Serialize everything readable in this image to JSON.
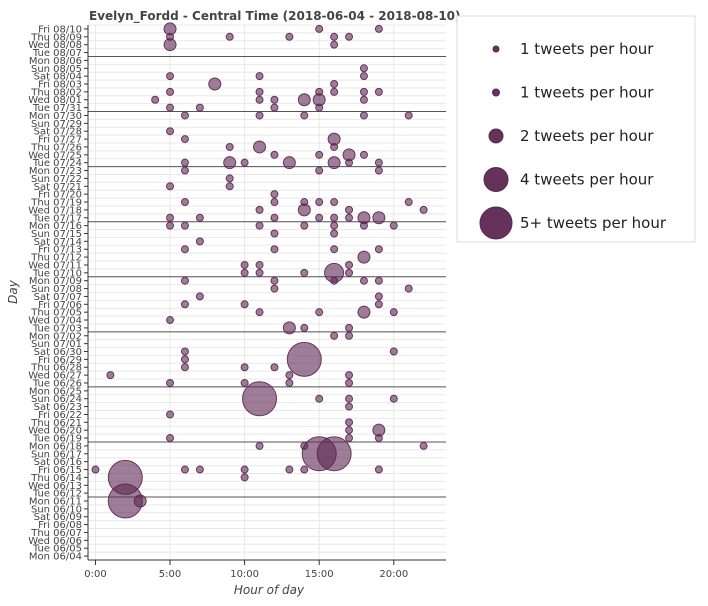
{
  "chart_data": {
    "type": "scatter",
    "title": "Evelyn_Fordd - Central Time (2018-06-04 - 2018-08-10)",
    "xlabel": "Hour of day",
    "ylabel": "Day",
    "xlim": [
      -0.5,
      23.5
    ],
    "x_ticks": [
      0,
      5,
      10,
      15,
      20
    ],
    "x_tick_labels": [
      "0:00",
      "5:00",
      "10:00",
      "15:00",
      "20:00"
    ],
    "days": [
      "Mon 06/04",
      "Tue 06/05",
      "Wed 06/06",
      "Thu 06/07",
      "Fri 06/08",
      "Sat 06/09",
      "Sun 06/10",
      "Mon 06/11",
      "Tue 06/12",
      "Wed 06/13",
      "Thu 06/14",
      "Fri 06/15",
      "Sat 06/16",
      "Sun 06/17",
      "Mon 06/18",
      "Tue 06/19",
      "Wed 06/20",
      "Thu 06/21",
      "Fri 06/22",
      "Sat 06/23",
      "Sun 06/24",
      "Mon 06/25",
      "Tue 06/26",
      "Wed 06/27",
      "Thu 06/28",
      "Fri 06/29",
      "Sat 06/30",
      "Sun 07/01",
      "Mon 07/02",
      "Tue 07/03",
      "Wed 07/04",
      "Thu 07/05",
      "Fri 07/06",
      "Sat 07/07",
      "Sun 07/08",
      "Mon 07/09",
      "Tue 07/10",
      "Wed 07/11",
      "Thu 07/12",
      "Fri 07/13",
      "Sat 07/14",
      "Sun 07/15",
      "Mon 07/16",
      "Tue 07/17",
      "Wed 07/18",
      "Thu 07/19",
      "Fri 07/20",
      "Sat 07/21",
      "Sun 07/22",
      "Mon 07/23",
      "Tue 07/24",
      "Wed 07/25",
      "Thu 07/26",
      "Fri 07/27",
      "Sat 07/28",
      "Sun 07/29",
      "Mon 07/30",
      "Tue 07/31",
      "Wed 08/01",
      "Thu 08/02",
      "Fri 08/03",
      "Sat 08/04",
      "Sun 08/05",
      "Mon 08/06",
      "Tue 08/07",
      "Wed 08/08",
      "Thu 08/09",
      "Fri 08/10"
    ],
    "week_separators": [
      "Mon 06/11",
      "Mon 06/18",
      "Mon 06/25",
      "Mon 07/02",
      "Mon 07/09",
      "Mon 07/16",
      "Mon 07/23",
      "Mon 07/30",
      "Mon 08/06"
    ],
    "marker_color": "#5c2751",
    "series": [
      {
        "name": "tweets",
        "points": [
          {
            "day": "Fri 08/10",
            "hour": 5,
            "count": 2
          },
          {
            "day": "Fri 08/10",
            "hour": 15,
            "count": 1
          },
          {
            "day": "Fri 08/10",
            "hour": 19,
            "count": 1
          },
          {
            "day": "Thu 08/09",
            "hour": 5,
            "count": 1
          },
          {
            "day": "Thu 08/09",
            "hour": 9,
            "count": 1
          },
          {
            "day": "Thu 08/09",
            "hour": 13,
            "count": 1
          },
          {
            "day": "Thu 08/09",
            "hour": 16,
            "count": 1
          },
          {
            "day": "Thu 08/09",
            "hour": 17,
            "count": 1
          },
          {
            "day": "Wed 08/08",
            "hour": 5,
            "count": 2
          },
          {
            "day": "Wed 08/08",
            "hour": 16,
            "count": 1
          },
          {
            "day": "Sun 08/05",
            "hour": 18,
            "count": 1
          },
          {
            "day": "Sat 08/04",
            "hour": 5,
            "count": 1
          },
          {
            "day": "Sat 08/04",
            "hour": 11,
            "count": 1
          },
          {
            "day": "Sat 08/04",
            "hour": 18,
            "count": 1
          },
          {
            "day": "Fri 08/03",
            "hour": 8,
            "count": 2
          },
          {
            "day": "Fri 08/03",
            "hour": 16,
            "count": 1
          },
          {
            "day": "Thu 08/02",
            "hour": 5,
            "count": 1
          },
          {
            "day": "Thu 08/02",
            "hour": 11,
            "count": 1
          },
          {
            "day": "Thu 08/02",
            "hour": 15,
            "count": 1
          },
          {
            "day": "Thu 08/02",
            "hour": 16,
            "count": 1
          },
          {
            "day": "Thu 08/02",
            "hour": 18,
            "count": 1
          },
          {
            "day": "Thu 08/02",
            "hour": 19,
            "count": 1
          },
          {
            "day": "Wed 08/01",
            "hour": 4,
            "count": 1
          },
          {
            "day": "Wed 08/01",
            "hour": 11,
            "count": 1
          },
          {
            "day": "Wed 08/01",
            "hour": 12,
            "count": 1
          },
          {
            "day": "Wed 08/01",
            "hour": 14,
            "count": 2
          },
          {
            "day": "Wed 08/01",
            "hour": 15,
            "count": 2
          },
          {
            "day": "Wed 08/01",
            "hour": 18,
            "count": 1
          },
          {
            "day": "Tue 07/31",
            "hour": 5,
            "count": 1
          },
          {
            "day": "Tue 07/31",
            "hour": 7,
            "count": 1
          },
          {
            "day": "Tue 07/31",
            "hour": 12,
            "count": 1
          },
          {
            "day": "Tue 07/31",
            "hour": 15,
            "count": 1
          },
          {
            "day": "Mon 07/30",
            "hour": 6,
            "count": 1
          },
          {
            "day": "Mon 07/30",
            "hour": 11,
            "count": 1
          },
          {
            "day": "Mon 07/30",
            "hour": 14,
            "count": 1
          },
          {
            "day": "Mon 07/30",
            "hour": 18,
            "count": 1
          },
          {
            "day": "Mon 07/30",
            "hour": 21,
            "count": 1
          },
          {
            "day": "Sat 07/28",
            "hour": 5,
            "count": 1
          },
          {
            "day": "Fri 07/27",
            "hour": 6,
            "count": 1
          },
          {
            "day": "Fri 07/27",
            "hour": 16,
            "count": 2
          },
          {
            "day": "Thu 07/26",
            "hour": 9,
            "count": 1
          },
          {
            "day": "Thu 07/26",
            "hour": 11,
            "count": 2
          },
          {
            "day": "Thu 07/26",
            "hour": 16,
            "count": 1
          },
          {
            "day": "Wed 07/25",
            "hour": 12,
            "count": 1
          },
          {
            "day": "Wed 07/25",
            "hour": 15,
            "count": 1
          },
          {
            "day": "Wed 07/25",
            "hour": 17,
            "count": 2
          },
          {
            "day": "Wed 07/25",
            "hour": 18,
            "count": 1
          },
          {
            "day": "Tue 07/24",
            "hour": 6,
            "count": 1
          },
          {
            "day": "Tue 07/24",
            "hour": 9,
            "count": 2
          },
          {
            "day": "Tue 07/24",
            "hour": 10,
            "count": 1
          },
          {
            "day": "Tue 07/24",
            "hour": 13,
            "count": 2
          },
          {
            "day": "Tue 07/24",
            "hour": 16,
            "count": 2
          },
          {
            "day": "Tue 07/24",
            "hour": 17,
            "count": 1
          },
          {
            "day": "Tue 07/24",
            "hour": 19,
            "count": 1
          },
          {
            "day": "Mon 07/23",
            "hour": 6,
            "count": 1
          },
          {
            "day": "Mon 07/23",
            "hour": 15,
            "count": 1
          },
          {
            "day": "Mon 07/23",
            "hour": 19,
            "count": 1
          },
          {
            "day": "Sun 07/22",
            "hour": 9,
            "count": 1
          },
          {
            "day": "Sat 07/21",
            "hour": 5,
            "count": 1
          },
          {
            "day": "Sat 07/21",
            "hour": 9,
            "count": 1
          },
          {
            "day": "Fri 07/20",
            "hour": 12,
            "count": 1
          },
          {
            "day": "Thu 07/19",
            "hour": 6,
            "count": 1
          },
          {
            "day": "Thu 07/19",
            "hour": 12,
            "count": 1
          },
          {
            "day": "Thu 07/19",
            "hour": 14,
            "count": 1
          },
          {
            "day": "Thu 07/19",
            "hour": 15,
            "count": 1
          },
          {
            "day": "Thu 07/19",
            "hour": 16,
            "count": 1
          },
          {
            "day": "Thu 07/19",
            "hour": 21,
            "count": 1
          },
          {
            "day": "Wed 07/18",
            "hour": 11,
            "count": 1
          },
          {
            "day": "Wed 07/18",
            "hour": 14,
            "count": 2
          },
          {
            "day": "Wed 07/18",
            "hour": 17,
            "count": 1
          },
          {
            "day": "Wed 07/18",
            "hour": 22,
            "count": 1
          },
          {
            "day": "Tue 07/17",
            "hour": 5,
            "count": 1
          },
          {
            "day": "Tue 07/17",
            "hour": 7,
            "count": 1
          },
          {
            "day": "Tue 07/17",
            "hour": 12,
            "count": 1
          },
          {
            "day": "Tue 07/17",
            "hour": 15,
            "count": 1
          },
          {
            "day": "Tue 07/17",
            "hour": 16,
            "count": 1
          },
          {
            "day": "Tue 07/17",
            "hour": 17,
            "count": 1
          },
          {
            "day": "Tue 07/17",
            "hour": 18,
            "count": 2
          },
          {
            "day": "Tue 07/17",
            "hour": 19,
            "count": 2
          },
          {
            "day": "Mon 07/16",
            "hour": 5,
            "count": 1
          },
          {
            "day": "Mon 07/16",
            "hour": 6,
            "count": 1
          },
          {
            "day": "Mon 07/16",
            "hour": 11,
            "count": 1
          },
          {
            "day": "Mon 07/16",
            "hour": 14,
            "count": 1
          },
          {
            "day": "Mon 07/16",
            "hour": 16,
            "count": 1
          },
          {
            "day": "Mon 07/16",
            "hour": 18,
            "count": 1
          },
          {
            "day": "Mon 07/16",
            "hour": 20,
            "count": 1
          },
          {
            "day": "Sun 07/15",
            "hour": 12,
            "count": 1
          },
          {
            "day": "Sun 07/15",
            "hour": 16,
            "count": 1
          },
          {
            "day": "Sat 07/14",
            "hour": 7,
            "count": 1
          },
          {
            "day": "Fri 07/13",
            "hour": 6,
            "count": 1
          },
          {
            "day": "Fri 07/13",
            "hour": 12,
            "count": 1
          },
          {
            "day": "Fri 07/13",
            "hour": 16,
            "count": 1
          },
          {
            "day": "Fri 07/13",
            "hour": 19,
            "count": 1
          },
          {
            "day": "Thu 07/12",
            "hour": 18,
            "count": 2
          },
          {
            "day": "Wed 07/11",
            "hour": 10,
            "count": 1
          },
          {
            "day": "Wed 07/11",
            "hour": 11,
            "count": 1
          },
          {
            "day": "Wed 07/11",
            "hour": 17,
            "count": 1
          },
          {
            "day": "Tue 07/10",
            "hour": 10,
            "count": 1
          },
          {
            "day": "Tue 07/10",
            "hour": 11,
            "count": 1
          },
          {
            "day": "Tue 07/10",
            "hour": 14,
            "count": 1
          },
          {
            "day": "Tue 07/10",
            "hour": 16,
            "count": 3
          },
          {
            "day": "Tue 07/10",
            "hour": 17,
            "count": 1
          },
          {
            "day": "Mon 07/09",
            "hour": 6,
            "count": 1
          },
          {
            "day": "Mon 07/09",
            "hour": 12,
            "count": 1
          },
          {
            "day": "Mon 07/09",
            "hour": 16,
            "count": 1
          },
          {
            "day": "Mon 07/09",
            "hour": 18,
            "count": 1
          },
          {
            "day": "Mon 07/09",
            "hour": 19,
            "count": 1
          },
          {
            "day": "Sun 07/08",
            "hour": 12,
            "count": 1
          },
          {
            "day": "Sun 07/08",
            "hour": 21,
            "count": 1
          },
          {
            "day": "Sat 07/07",
            "hour": 7,
            "count": 1
          },
          {
            "day": "Sat 07/07",
            "hour": 19,
            "count": 1
          },
          {
            "day": "Fri 07/06",
            "hour": 6,
            "count": 1
          },
          {
            "day": "Fri 07/06",
            "hour": 10,
            "count": 1
          },
          {
            "day": "Fri 07/06",
            "hour": 19,
            "count": 1
          },
          {
            "day": "Thu 07/05",
            "hour": 11,
            "count": 1
          },
          {
            "day": "Thu 07/05",
            "hour": 15,
            "count": 1
          },
          {
            "day": "Thu 07/05",
            "hour": 18,
            "count": 2
          },
          {
            "day": "Thu 07/05",
            "hour": 20,
            "count": 1
          },
          {
            "day": "Wed 07/04",
            "hour": 5,
            "count": 1
          },
          {
            "day": "Tue 07/03",
            "hour": 13,
            "count": 2
          },
          {
            "day": "Tue 07/03",
            "hour": 14,
            "count": 1
          },
          {
            "day": "Tue 07/03",
            "hour": 17,
            "count": 1
          },
          {
            "day": "Mon 07/02",
            "hour": 16,
            "count": 1
          },
          {
            "day": "Mon 07/02",
            "hour": 17,
            "count": 1
          },
          {
            "day": "Sat 06/30",
            "hour": 6,
            "count": 1
          },
          {
            "day": "Sat 06/30",
            "hour": 20,
            "count": 1
          },
          {
            "day": "Fri 06/29",
            "hour": 6,
            "count": 1
          },
          {
            "day": "Fri 06/29",
            "hour": 14,
            "count": 5
          },
          {
            "day": "Thu 06/28",
            "hour": 6,
            "count": 1
          },
          {
            "day": "Thu 06/28",
            "hour": 10,
            "count": 1
          },
          {
            "day": "Thu 06/28",
            "hour": 12,
            "count": 1
          },
          {
            "day": "Wed 06/27",
            "hour": 1,
            "count": 1
          },
          {
            "day": "Wed 06/27",
            "hour": 13,
            "count": 1
          },
          {
            "day": "Wed 06/27",
            "hour": 17,
            "count": 1
          },
          {
            "day": "Tue 06/26",
            "hour": 5,
            "count": 1
          },
          {
            "day": "Tue 06/26",
            "hour": 10,
            "count": 1
          },
          {
            "day": "Tue 06/26",
            "hour": 13,
            "count": 1
          },
          {
            "day": "Tue 06/26",
            "hour": 17,
            "count": 1
          },
          {
            "day": "Sun 06/24",
            "hour": 11,
            "count": 5
          },
          {
            "day": "Sun 06/24",
            "hour": 15,
            "count": 1
          },
          {
            "day": "Sun 06/24",
            "hour": 17,
            "count": 1
          },
          {
            "day": "Sun 06/24",
            "hour": 20,
            "count": 1
          },
          {
            "day": "Sat 06/23",
            "hour": 17,
            "count": 1
          },
          {
            "day": "Fri 06/22",
            "hour": 5,
            "count": 1
          },
          {
            "day": "Thu 06/21",
            "hour": 17,
            "count": 1
          },
          {
            "day": "Wed 06/20",
            "hour": 17,
            "count": 1
          },
          {
            "day": "Wed 06/20",
            "hour": 19,
            "count": 2
          },
          {
            "day": "Tue 06/19",
            "hour": 5,
            "count": 1
          },
          {
            "day": "Tue 06/19",
            "hour": 17,
            "count": 1
          },
          {
            "day": "Tue 06/19",
            "hour": 19,
            "count": 1
          },
          {
            "day": "Mon 06/18",
            "hour": 11,
            "count": 1
          },
          {
            "day": "Mon 06/18",
            "hour": 14,
            "count": 1
          },
          {
            "day": "Mon 06/18",
            "hour": 22,
            "count": 1
          },
          {
            "day": "Sun 06/17",
            "hour": 15,
            "count": 5
          },
          {
            "day": "Sun 06/17",
            "hour": 16,
            "count": 5
          },
          {
            "day": "Fri 06/15",
            "hour": 0,
            "count": 1
          },
          {
            "day": "Fri 06/15",
            "hour": 6,
            "count": 1
          },
          {
            "day": "Fri 06/15",
            "hour": 7,
            "count": 1
          },
          {
            "day": "Fri 06/15",
            "hour": 10,
            "count": 1
          },
          {
            "day": "Fri 06/15",
            "hour": 13,
            "count": 1
          },
          {
            "day": "Fri 06/15",
            "hour": 14,
            "count": 1
          },
          {
            "day": "Fri 06/15",
            "hour": 19,
            "count": 1
          },
          {
            "day": "Thu 06/14",
            "hour": 2,
            "count": 5
          },
          {
            "day": "Thu 06/14",
            "hour": 10,
            "count": 1
          },
          {
            "day": "Mon 06/11",
            "hour": 2,
            "count": 5
          },
          {
            "day": "Mon 06/11",
            "hour": 3,
            "count": 2
          }
        ]
      }
    ],
    "legend": {
      "position": "right",
      "entries": [
        {
          "label": "1 tweets per hour",
          "count": 1
        },
        {
          "label": "1 tweets per hour",
          "count": 1.5
        },
        {
          "label": "2 tweets per hour",
          "count": 2
        },
        {
          "label": "4 tweets per hour",
          "count": 4
        },
        {
          "label": "5+ tweets per hour",
          "count": 5
        }
      ]
    }
  }
}
